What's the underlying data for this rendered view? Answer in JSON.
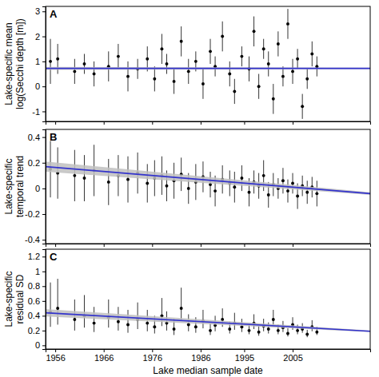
{
  "chart_data": [
    {
      "type": "scatter",
      "title": "A",
      "ylabel": [
        "Lake-specific mean",
        "log(Secchi depth [m])"
      ],
      "tick_labels": "y",
      "xlim": [
        1954,
        2021
      ],
      "xticks": [
        1956,
        1966,
        1976,
        1986,
        1995,
        2005
      ],
      "ylim": [
        -1.4,
        3.2
      ],
      "yticks": [
        -1,
        0,
        1,
        2,
        3
      ],
      "series": [
        {
          "type": "scatter",
          "color": "#000000",
          "marker": "circle",
          "x": [
            1955,
            1956.5,
            1960,
            1962,
            1964,
            1967,
            1969,
            1971,
            1973,
            1975,
            1976.5,
            1978,
            1979,
            1980.5,
            1982,
            1983.5,
            1985,
            1986.5,
            1988,
            1989,
            1990.5,
            1992,
            1993,
            1994.5,
            1996,
            1997,
            1998,
            1999,
            2000,
            2001,
            2002,
            2003,
            2004,
            2005,
            2006,
            2007,
            2008,
            2009,
            2010
          ],
          "values": [
            1.0,
            1.1,
            0.6,
            0.9,
            0.5,
            0.8,
            1.2,
            0.4,
            0.7,
            1.1,
            0.3,
            1.5,
            0.9,
            0.2,
            1.8,
            0.6,
            1.0,
            0.1,
            1.4,
            0.8,
            2.0,
            0.5,
            -0.2,
            1.2,
            0.7,
            2.2,
            0.0,
            1.5,
            0.9,
            -0.5,
            1.7,
            0.4,
            2.5,
            0.6,
            1.1,
            -0.8,
            0.3,
            1.3,
            0.8
          ],
          "lower": [
            0.1,
            0.5,
            0.1,
            0.5,
            0.0,
            0.2,
            0.7,
            -0.2,
            0.3,
            0.6,
            -0.2,
            0.9,
            0.5,
            -0.3,
            1.2,
            0.1,
            0.6,
            -0.5,
            0.9,
            0.4,
            1.4,
            0.0,
            -0.7,
            0.8,
            0.2,
            1.6,
            -0.5,
            1.1,
            0.4,
            -1.1,
            1.2,
            0.0,
            1.9,
            0.1,
            0.7,
            -1.3,
            -0.1,
            0.8,
            0.4
          ],
          "upper": [
            1.9,
            1.7,
            1.1,
            1.3,
            1.0,
            1.4,
            1.7,
            1.0,
            1.1,
            1.6,
            0.8,
            2.1,
            1.3,
            0.7,
            2.4,
            1.1,
            1.4,
            0.7,
            1.9,
            1.2,
            2.6,
            1.0,
            0.3,
            1.6,
            1.2,
            2.8,
            0.5,
            1.9,
            1.4,
            0.1,
            2.2,
            0.8,
            3.1,
            1.1,
            1.5,
            -0.3,
            0.7,
            1.8,
            1.2
          ]
        },
        {
          "type": "line",
          "color": "#3333cc",
          "x": [
            1954,
            2021
          ],
          "values": [
            0.72,
            0.72
          ],
          "lower": [
            0.66,
            0.69
          ],
          "upper": [
            0.78,
            0.75
          ]
        }
      ]
    },
    {
      "type": "scatter",
      "title": "B",
      "ylabel": [
        "Lake-specific",
        "temporal trend"
      ],
      "tick_labels": "y",
      "xlim": [
        1954,
        2021
      ],
      "xticks": [
        1956,
        1966,
        1976,
        1986,
        1995,
        2005
      ],
      "ylim": [
        -0.43,
        0.46
      ],
      "yticks": [
        -0.4,
        -0.2,
        0,
        0.2,
        0.4
      ],
      "series": [
        {
          "type": "scatter",
          "color": "#000000",
          "marker": "circle",
          "x": [
            1955,
            1956.5,
            1960,
            1962,
            1964,
            1967,
            1969,
            1971,
            1973,
            1975,
            1976.5,
            1978,
            1979,
            1980.5,
            1982,
            1983.5,
            1985,
            1986.5,
            1988,
            1989,
            1990.5,
            1992,
            1993,
            1994.5,
            1996,
            1997,
            1998,
            1999,
            2000,
            2001,
            2002,
            2003,
            2004,
            2005,
            2006,
            2007,
            2008,
            2009,
            2010
          ],
          "values": [
            0.15,
            0.12,
            0.1,
            0.08,
            0.14,
            0.05,
            0.1,
            0.07,
            0.12,
            0.04,
            0.08,
            0.1,
            0.02,
            0.06,
            0.11,
            0.0,
            0.05,
            0.09,
            0.03,
            -0.02,
            0.07,
            0.04,
            0.01,
            0.08,
            -0.03,
            0.05,
            0.02,
            0.1,
            -0.05,
            0.03,
            0.0,
            0.06,
            -0.02,
            0.04,
            -0.06,
            0.02,
            -0.03,
            0.01,
            -0.04
          ],
          "lower": [
            -0.07,
            -0.08,
            -0.1,
            -0.1,
            -0.06,
            -0.13,
            -0.06,
            -0.11,
            -0.04,
            -0.11,
            -0.06,
            -0.05,
            -0.1,
            -0.08,
            -0.02,
            -0.12,
            -0.09,
            -0.03,
            -0.07,
            -0.14,
            -0.04,
            -0.06,
            -0.11,
            -0.02,
            -0.14,
            -0.04,
            -0.08,
            -0.02,
            -0.15,
            -0.06,
            -0.08,
            -0.04,
            -0.11,
            -0.04,
            -0.16,
            -0.06,
            -0.12,
            -0.07,
            -0.14
          ],
          "upper": [
            0.37,
            0.32,
            0.3,
            0.26,
            0.34,
            0.23,
            0.26,
            0.25,
            0.28,
            0.19,
            0.22,
            0.25,
            0.14,
            0.2,
            0.24,
            0.12,
            0.19,
            0.21,
            0.13,
            0.1,
            0.18,
            0.14,
            0.13,
            0.18,
            0.08,
            0.14,
            0.12,
            0.22,
            0.05,
            0.12,
            0.08,
            0.16,
            0.07,
            0.12,
            0.04,
            0.1,
            0.06,
            0.09,
            0.06
          ]
        },
        {
          "type": "line",
          "color": "#3333cc",
          "x": [
            1954,
            2021
          ],
          "values": [
            0.17,
            -0.04
          ],
          "lower": [
            0.13,
            -0.05
          ],
          "upper": [
            0.21,
            -0.03
          ]
        }
      ]
    },
    {
      "type": "scatter",
      "title": "C",
      "ylabel": [
        "Lake-specific",
        "residual SD"
      ],
      "xlabel": "Lake median sample date",
      "xlim": [
        1954,
        2021
      ],
      "xticks": [
        1956,
        1966,
        1976,
        1986,
        1995,
        2005
      ],
      "ylim": [
        -0.05,
        1.3
      ],
      "yticks": [
        0,
        0.2,
        0.4,
        0.6,
        0.8,
        1,
        1.2
      ],
      "series": [
        {
          "type": "scatter",
          "color": "#000000",
          "marker": "circle",
          "x": [
            1955,
            1956.5,
            1960,
            1962,
            1964,
            1967,
            1969,
            1971,
            1973,
            1975,
            1976.5,
            1978,
            1979,
            1980.5,
            1982,
            1983.5,
            1985,
            1986.5,
            1988,
            1989,
            1990.5,
            1992,
            1993,
            1994.5,
            1996,
            1997,
            1998,
            1999,
            2000,
            2001,
            2002,
            2003,
            2004,
            2005,
            2006,
            2007,
            2008,
            2009,
            2010
          ],
          "values": [
            0.45,
            0.5,
            0.35,
            0.4,
            0.3,
            0.38,
            0.32,
            0.28,
            0.35,
            0.3,
            0.25,
            0.4,
            0.3,
            0.22,
            0.5,
            0.28,
            0.25,
            0.33,
            0.2,
            0.27,
            0.35,
            0.22,
            0.3,
            0.25,
            0.2,
            0.3,
            0.18,
            0.26,
            0.22,
            0.35,
            0.2,
            0.24,
            0.16,
            0.28,
            0.2,
            0.22,
            0.15,
            0.25,
            0.18
          ],
          "lower": [
            0.25,
            0.28,
            0.2,
            0.24,
            0.18,
            0.24,
            0.2,
            0.17,
            0.22,
            0.19,
            0.16,
            0.26,
            0.2,
            0.14,
            0.34,
            0.19,
            0.17,
            0.23,
            0.14,
            0.19,
            0.25,
            0.16,
            0.21,
            0.18,
            0.15,
            0.22,
            0.13,
            0.19,
            0.16,
            0.26,
            0.15,
            0.18,
            0.12,
            0.21,
            0.15,
            0.17,
            0.11,
            0.19,
            0.14
          ],
          "upper": [
            0.85,
            0.9,
            0.62,
            0.68,
            0.52,
            0.62,
            0.52,
            0.48,
            0.58,
            0.48,
            0.4,
            0.64,
            0.46,
            0.36,
            0.78,
            0.42,
            0.38,
            0.48,
            0.3,
            0.4,
            0.5,
            0.32,
            0.44,
            0.36,
            0.28,
            0.42,
            0.26,
            0.36,
            0.31,
            0.48,
            0.28,
            0.33,
            0.23,
            0.38,
            0.28,
            0.3,
            0.21,
            0.34,
            0.25
          ]
        },
        {
          "type": "line",
          "color": "#3333cc",
          "x": [
            1954,
            2021
          ],
          "values": [
            0.44,
            0.19
          ],
          "lower": [
            0.39,
            0.18
          ],
          "upper": [
            0.49,
            0.2
          ]
        }
      ]
    }
  ]
}
